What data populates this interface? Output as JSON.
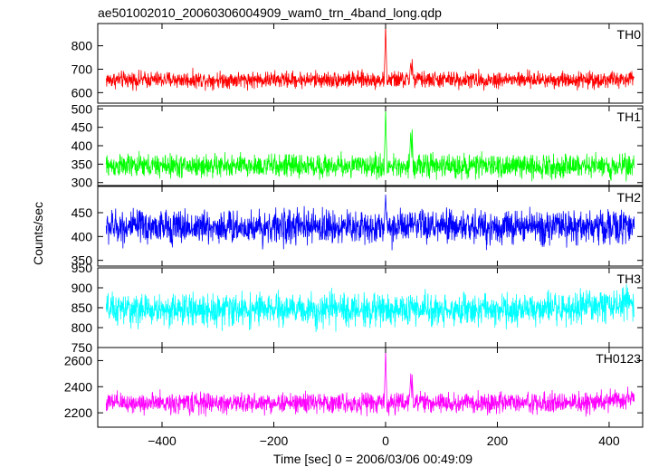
{
  "chart_data": {
    "type": "line",
    "title": "ae501002010_20060306004909_wam0_trn_4band_long.qdp",
    "xlabel": "Time [sec] 0 = 2006/03/06 00:49:09",
    "ylabel": "Counts/sec",
    "xlim": [
      -515,
      460
    ],
    "xticks": [
      -400,
      -200,
      0,
      200,
      400
    ],
    "data_range": [
      -500,
      445
    ],
    "grid": false,
    "panels": [
      {
        "name": "TH0",
        "color": "#ff0000",
        "ylim": [
          555,
          895
        ],
        "yticks": [
          600,
          700,
          800
        ],
        "baseline": 655,
        "noise": 25,
        "features": [
          {
            "x": 0,
            "peak": 890
          },
          {
            "x": 47,
            "peak": 760
          },
          {
            "x": 45,
            "peak": 730
          }
        ]
      },
      {
        "name": "TH1",
        "color": "#00ff00",
        "ylim": [
          292,
          508
        ],
        "yticks": [
          300,
          350,
          400,
          450,
          500
        ],
        "baseline": 345,
        "noise": 22,
        "features": [
          {
            "x": 0,
            "peak": 500
          },
          {
            "x": 47,
            "peak": 465
          },
          {
            "x": 45,
            "peak": 440
          }
        ]
      },
      {
        "name": "TH2",
        "color": "#0000ff",
        "ylim": [
          338,
          505
        ],
        "yticks": [
          350,
          400,
          450
        ],
        "baseline": 420,
        "noise": 25,
        "features": [
          {
            "x": 0,
            "peak": 490
          }
        ]
      },
      {
        "name": "TH3",
        "color": "#00ffff",
        "ylim": [
          750,
          950
        ],
        "yticks": [
          750,
          800,
          850,
          900,
          950
        ],
        "baseline": 845,
        "noise": 28,
        "features": [
          {
            "x": 300,
            "rise": 10
          },
          {
            "x": 400,
            "rise": 20
          }
        ]
      },
      {
        "name": "TH0123",
        "color": "#ff00ff",
        "ylim": [
          2090,
          2700
        ],
        "yticks": [
          2200,
          2400,
          2600
        ],
        "baseline": 2275,
        "noise": 55,
        "features": [
          {
            "x": 0,
            "peak": 2680
          },
          {
            "x": 47,
            "peak": 2560
          },
          {
            "x": 45,
            "peak": 2500
          },
          {
            "x": 350,
            "rise": 40
          }
        ]
      }
    ]
  }
}
